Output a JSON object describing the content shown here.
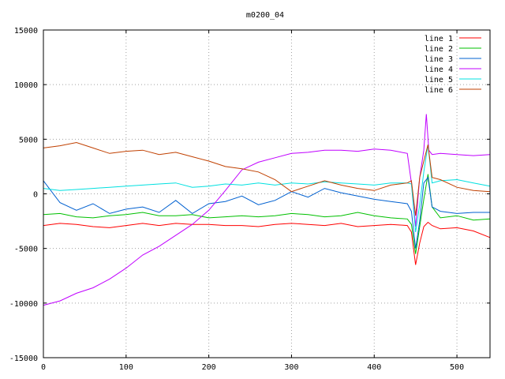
{
  "chart_data": {
    "type": "line",
    "title": "m0200_04",
    "xlabel": "",
    "ylabel": "",
    "xlim": [
      0,
      540
    ],
    "ylim": [
      -15000,
      15000
    ],
    "x_ticks": [
      0,
      100,
      200,
      300,
      400,
      500
    ],
    "y_ticks": [
      -15000,
      -10000,
      -5000,
      0,
      5000,
      10000,
      15000
    ],
    "grid": true,
    "legend_position": "top-right",
    "series": [
      {
        "name": "line 1",
        "color": "#ff0000",
        "x": [
          0,
          20,
          40,
          60,
          80,
          100,
          120,
          140,
          160,
          180,
          200,
          220,
          240,
          260,
          280,
          300,
          320,
          340,
          360,
          380,
          400,
          420,
          440,
          445,
          450,
          455,
          460,
          465,
          470,
          480,
          500,
          520,
          540
        ],
        "y": [
          -2900,
          -2700,
          -2800,
          -3000,
          -3100,
          -2900,
          -2700,
          -2900,
          -2700,
          -2800,
          -2800,
          -2900,
          -2900,
          -3000,
          -2800,
          -2700,
          -2800,
          -2900,
          -2700,
          -3000,
          -2900,
          -2800,
          -2900,
          -3500,
          -6500,
          -4500,
          -3000,
          -2600,
          -2900,
          -3200,
          -3100,
          -3400,
          -4000
        ]
      },
      {
        "name": "line 2",
        "color": "#00c000",
        "x": [
          0,
          20,
          40,
          60,
          80,
          100,
          120,
          140,
          160,
          180,
          200,
          220,
          240,
          260,
          280,
          300,
          320,
          340,
          360,
          380,
          400,
          420,
          440,
          445,
          450,
          455,
          460,
          465,
          470,
          480,
          500,
          520,
          540
        ],
        "y": [
          -1900,
          -1800,
          -2100,
          -2200,
          -2000,
          -1900,
          -1700,
          -2000,
          -2000,
          -1900,
          -2200,
          -2100,
          -2000,
          -2100,
          -2000,
          -1800,
          -1900,
          -2100,
          -2000,
          -1700,
          -2000,
          -2200,
          -2300,
          -2800,
          -5500,
          -3000,
          -500,
          1800,
          -1200,
          -2200,
          -2000,
          -2400,
          -2300
        ]
      },
      {
        "name": "line 3",
        "color": "#0060d0",
        "x": [
          0,
          20,
          40,
          60,
          80,
          100,
          120,
          140,
          160,
          180,
          200,
          220,
          240,
          260,
          280,
          300,
          320,
          340,
          360,
          380,
          400,
          420,
          440,
          445,
          450,
          455,
          460,
          465,
          470,
          480,
          500,
          520,
          540
        ],
        "y": [
          1200,
          -800,
          -1500,
          -900,
          -1800,
          -1400,
          -1200,
          -1700,
          -600,
          -1800,
          -900,
          -700,
          -200,
          -1000,
          -600,
          200,
          -300,
          500,
          100,
          -200,
          -500,
          -700,
          -900,
          -1600,
          -5000,
          -2500,
          1000,
          1500,
          -1200,
          -1600,
          -1800,
          -1700,
          -1700
        ]
      },
      {
        "name": "line 4",
        "color": "#c000ff",
        "x": [
          0,
          20,
          40,
          60,
          80,
          100,
          120,
          140,
          160,
          180,
          200,
          220,
          240,
          260,
          280,
          300,
          320,
          340,
          360,
          380,
          400,
          420,
          440,
          445,
          450,
          455,
          460,
          463,
          466,
          470,
          480,
          500,
          520,
          540
        ],
        "y": [
          -10200,
          -9800,
          -9100,
          -8600,
          -7800,
          -6800,
          -5600,
          -4800,
          -3800,
          -2800,
          -1500,
          300,
          2200,
          2900,
          3300,
          3700,
          3800,
          4000,
          4000,
          3900,
          4100,
          4000,
          3700,
          1000,
          -3000,
          1500,
          4000,
          7300,
          4000,
          3600,
          3700,
          3600,
          3500,
          3600
        ]
      },
      {
        "name": "line 5",
        "color": "#00e0e0",
        "x": [
          0,
          20,
          40,
          60,
          80,
          100,
          120,
          140,
          160,
          180,
          200,
          220,
          240,
          260,
          280,
          300,
          320,
          340,
          360,
          380,
          400,
          420,
          440,
          445,
          450,
          455,
          460,
          465,
          470,
          480,
          500,
          520,
          540
        ],
        "y": [
          500,
          300,
          400,
          500,
          600,
          700,
          800,
          900,
          1000,
          600,
          700,
          900,
          800,
          1000,
          800,
          1000,
          900,
          1100,
          1000,
          900,
          800,
          1000,
          1000,
          900,
          -3500,
          -1000,
          2000,
          4500,
          1000,
          1200,
          1300,
          1000,
          700
        ]
      },
      {
        "name": "line 6",
        "color": "#c04000",
        "x": [
          0,
          20,
          40,
          60,
          80,
          100,
          120,
          140,
          160,
          180,
          200,
          220,
          240,
          260,
          280,
          300,
          320,
          340,
          360,
          380,
          400,
          420,
          440,
          445,
          450,
          455,
          460,
          465,
          470,
          480,
          500,
          520,
          540
        ],
        "y": [
          4200,
          4400,
          4700,
          4200,
          3700,
          3900,
          4000,
          3600,
          3800,
          3400,
          3000,
          2500,
          2300,
          2000,
          1300,
          200,
          700,
          1200,
          800,
          500,
          300,
          800,
          1000,
          1200,
          -2000,
          1500,
          3000,
          4500,
          1500,
          1300,
          600,
          300,
          200
        ]
      }
    ]
  }
}
